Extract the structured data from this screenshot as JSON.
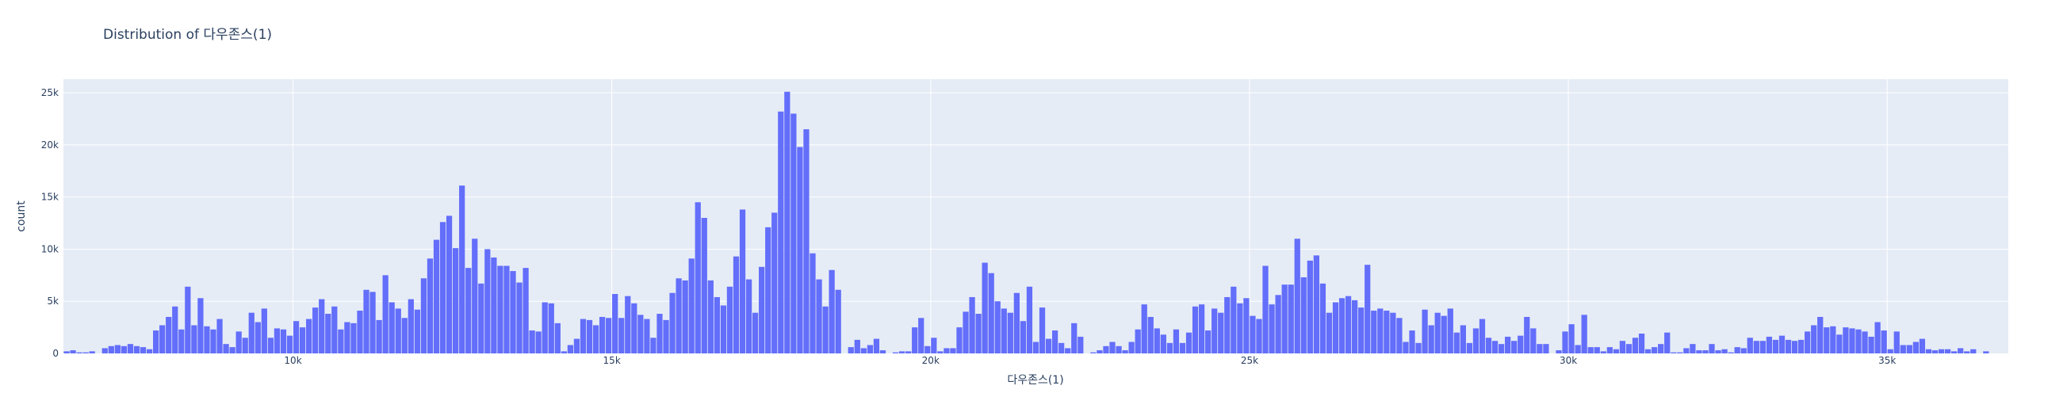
{
  "chart_data": {
    "type": "bar",
    "title": "Distribution of 다우존스(1)",
    "xlabel": "다우존스(1)",
    "ylabel": "count",
    "colors": {
      "bar": "#636efa",
      "plot_bg": "#e5ecf6",
      "grid": "#ffffff",
      "text": "#2a3f5f"
    },
    "grid": true,
    "xlim": [
      6400,
      36900
    ],
    "ylim": [
      0,
      26300
    ],
    "xticks": [
      {
        "value": 10000,
        "label": "10k"
      },
      {
        "value": 15000,
        "label": "15k"
      },
      {
        "value": 20000,
        "label": "20k"
      },
      {
        "value": 25000,
        "label": "25k"
      },
      {
        "value": 30000,
        "label": "30k"
      },
      {
        "value": 35000,
        "label": "35k"
      }
    ],
    "yticks": [
      {
        "value": 0,
        "label": "0"
      },
      {
        "value": 5000,
        "label": "5k"
      },
      {
        "value": 10000,
        "label": "10k"
      },
      {
        "value": 15000,
        "label": "15k"
      },
      {
        "value": 20000,
        "label": "20k"
      },
      {
        "value": 25000,
        "label": "25k"
      }
    ],
    "bin_start": 6400,
    "bin_width": 100,
    "counts": [
      200,
      300,
      100,
      100,
      200,
      0,
      500,
      700,
      800,
      700,
      900,
      700,
      600,
      400,
      2200,
      2700,
      3500,
      4500,
      2300,
      6400,
      2700,
      5300,
      2600,
      2300,
      3300,
      900,
      600,
      2100,
      1500,
      3900,
      3000,
      4300,
      1500,
      2400,
      2300,
      1700,
      3100,
      2500,
      3300,
      4400,
      5200,
      3800,
      4500,
      2300,
      3000,
      2900,
      4100,
      6100,
      5900,
      3200,
      7500,
      4900,
      4300,
      3400,
      5200,
      4200,
      7200,
      9100,
      10900,
      12600,
      13200,
      10100,
      16100,
      8200,
      11000,
      6700,
      10000,
      9200,
      8400,
      8400,
      7900,
      6800,
      8200,
      2200,
      2100,
      4900,
      4800,
      2900,
      200,
      800,
      1400,
      3300,
      3200,
      2700,
      3500,
      3400,
      5700,
      3400,
      5500,
      4800,
      3700,
      3300,
      1500,
      3800,
      3200,
      5800,
      7200,
      7000,
      9100,
      14500,
      13000,
      7000,
      5400,
      4600,
      6400,
      9300,
      13800,
      7100,
      3900,
      8300,
      12100,
      13500,
      23200,
      25100,
      23000,
      19800,
      21500,
      9600,
      7100,
      4500,
      8000,
      6100,
      0,
      600,
      1300,
      500,
      800,
      1400,
      300,
      0,
      100,
      200,
      200,
      2500,
      3400,
      700,
      1500,
      200,
      500,
      500,
      2500,
      4000,
      5400,
      3800,
      8700,
      7700,
      5000,
      4300,
      3900,
      5800,
      3100,
      6400,
      1100,
      4400,
      1400,
      2200,
      1000,
      500,
      2900,
      1600,
      0,
      100,
      300,
      700,
      1100,
      700,
      300,
      1100,
      2300,
      4700,
      3500,
      2400,
      1800,
      1000,
      2300,
      1000,
      2000,
      4500,
      4700,
      2200,
      4300,
      3900,
      5400,
      6400,
      4800,
      5300,
      3600,
      3300,
      8400,
      4700,
      5600,
      6600,
      6600,
      11000,
      7300,
      8900,
      9400,
      6700,
      3900,
      4900,
      5300,
      5500,
      5100,
      4400,
      8500,
      4100,
      4300,
      4100,
      3900,
      3400,
      1100,
      2200,
      1000,
      4200,
      2700,
      3900,
      3600,
      4300,
      2000,
      2700,
      1000,
      2400,
      3300,
      1500,
      1200,
      900,
      1600,
      1200,
      1700,
      3500,
      2400,
      900,
      900,
      0,
      300,
      2100,
      2800,
      800,
      3700,
      600,
      600,
      200,
      600,
      400,
      1200,
      900,
      1500,
      1900,
      400,
      600,
      900,
      2000,
      100,
      100,
      500,
      900,
      300,
      300,
      900,
      300,
      400,
      100,
      600,
      500,
      1500,
      1200,
      1200,
      1600,
      1300,
      1700,
      1300,
      1200,
      1300,
      2100,
      2700,
      3500,
      2500,
      2600,
      1800,
      2500,
      2400,
      2300,
      2100,
      1600,
      3000,
      2200,
      400,
      2100,
      800,
      800,
      1100,
      1400,
      400,
      300,
      400,
      400,
      200,
      500,
      200,
      400,
      0,
      200
    ]
  }
}
